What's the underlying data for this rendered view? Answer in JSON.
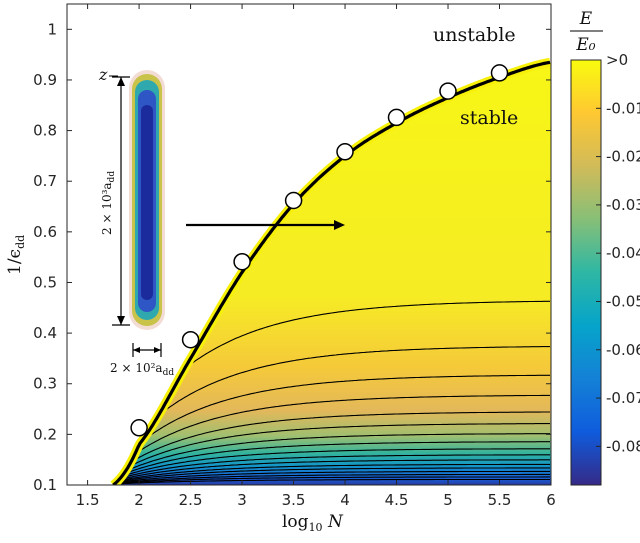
{
  "chart_data": {
    "type": "heatmap",
    "xlabel": "log₁₀ N",
    "ylabel": "1/ϵdd",
    "xlim": [
      1.3,
      6
    ],
    "ylim": [
      0.1,
      1.05
    ],
    "x_ticks": [
      "1.5",
      "2",
      "2.5",
      "3",
      "3.5",
      "4",
      "4.5",
      "5",
      "5.5",
      "6"
    ],
    "y_ticks": [
      "0.1",
      "0.2",
      "0.3",
      "0.4",
      "0.5",
      "0.6",
      "0.7",
      "0.8",
      "0.9",
      "1"
    ],
    "colorbar": {
      "title_num": "E",
      "title_den": "E₀",
      "ticks": [
        ">0",
        "-0.01",
        "-0.02",
        "-0.03",
        "-0.04",
        "-0.05",
        "-0.06",
        "-0.07",
        "-0.08"
      ],
      "range": [
        -0.088,
        0
      ],
      "colors": [
        "#352a87",
        "#0f5cdd",
        "#1481d6",
        "#06a4ca",
        "#2eb7a4",
        "#87bf77",
        "#d1bb59",
        "#fec832",
        "#f9fb0e"
      ]
    },
    "stability_boundary": {
      "x": [
        1.75,
        2.0,
        2.5,
        3.0,
        3.5,
        4.0,
        4.5,
        5.0,
        5.5,
        6.0
      ],
      "y": [
        0.1,
        0.18,
        0.35,
        0.52,
        0.655,
        0.75,
        0.815,
        0.865,
        0.905,
        0.935
      ]
    },
    "contour_asymptotes": [
      0.465,
      0.375,
      0.318,
      0.278,
      0.245,
      0.222,
      0.202,
      0.186,
      0.172,
      0.16,
      0.15,
      0.141,
      0.134,
      0.127,
      0.121,
      0.116,
      0.111
    ],
    "markers": {
      "x": [
        2.0,
        2.5,
        3.0,
        3.5,
        4.0,
        4.5,
        5.0,
        5.5
      ],
      "y": [
        0.213,
        0.387,
        0.541,
        0.662,
        0.758,
        0.826,
        0.878,
        0.914
      ]
    },
    "annotations": {
      "unstable": "unstable",
      "stable": "stable",
      "z_axis": "z",
      "height_label": "2 × 10³a",
      "width_label": "2 × 10²a",
      "subscript": "dd"
    }
  }
}
